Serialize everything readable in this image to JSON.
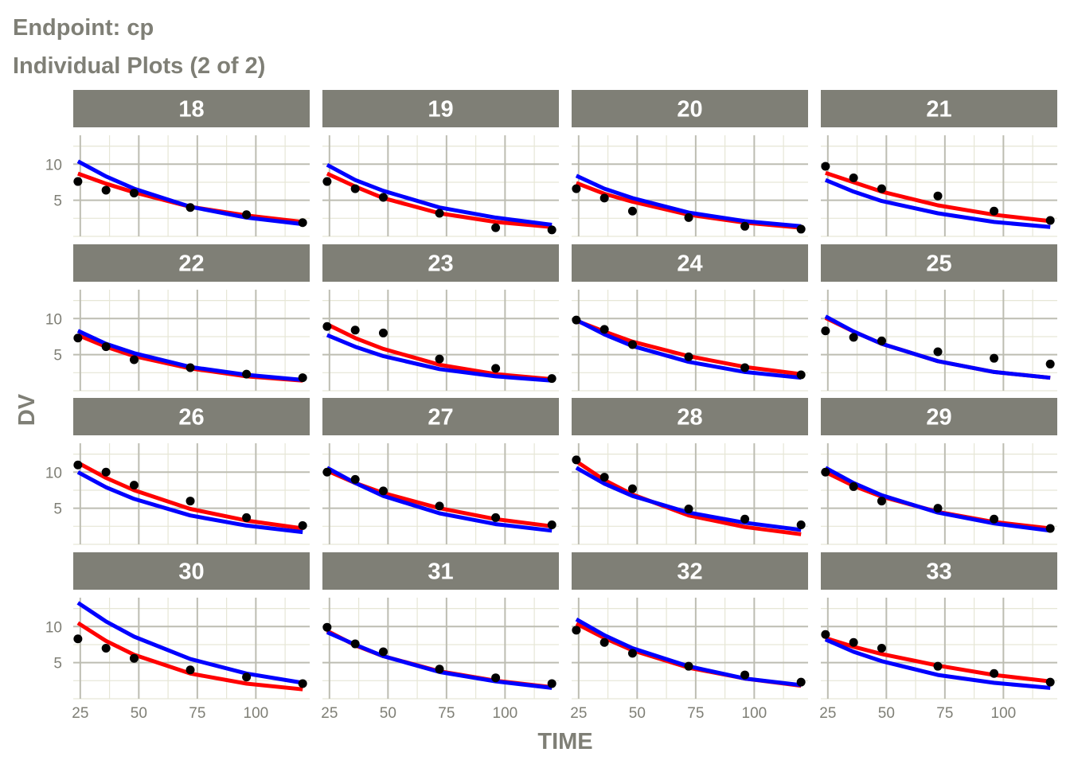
{
  "page": {
    "title_line1": "Endpoint:  cp",
    "title_line2": "Individual Plots (2 of 2)"
  },
  "chart_data": {
    "type": "line",
    "facets_layout": "4x4",
    "xlabel": "TIME",
    "ylabel": "DV",
    "xlim": [
      22,
      123
    ],
    "ylim": [
      0,
      14
    ],
    "xticks": [
      25,
      50,
      75,
      100
    ],
    "yticks": [
      5,
      10
    ],
    "grid": true,
    "x": [
      24,
      36,
      48,
      72,
      96,
      120
    ],
    "series_styles": [
      {
        "key": "red",
        "color": "#ff0000"
      },
      {
        "key": "blue",
        "color": "#0000ff"
      },
      {
        "key": "points",
        "color": "#000000"
      }
    ],
    "colors": {
      "strip_bg": "#7f7f76",
      "panel_bg": "#ffffff",
      "grid_major": "#bdbdb2",
      "grid_minor": "#e6e6d6",
      "text": "#7f7f76"
    },
    "panels": [
      {
        "id": "18",
        "points": [
          7.6,
          6.4,
          6.0,
          4.0,
          3.0,
          1.9
        ],
        "red": [
          8.7,
          7.3,
          6.1,
          4.1,
          2.9,
          2.0
        ],
        "blue": [
          10.4,
          8.3,
          6.6,
          4.1,
          2.6,
          1.7
        ]
      },
      {
        "id": "19",
        "points": [
          7.6,
          6.6,
          5.4,
          3.2,
          1.2,
          0.9
        ],
        "red": [
          8.7,
          6.9,
          5.3,
          3.2,
          2.0,
          1.3
        ],
        "blue": [
          9.9,
          7.8,
          6.3,
          4.0,
          2.6,
          1.6
        ]
      },
      {
        "id": "20",
        "points": [
          6.6,
          5.3,
          3.5,
          2.6,
          1.4,
          1.0
        ],
        "red": [
          7.4,
          5.9,
          4.8,
          3.0,
          1.9,
          1.2
        ],
        "blue": [
          8.4,
          6.6,
          5.3,
          3.3,
          2.1,
          1.4
        ]
      },
      {
        "id": "21",
        "points": [
          9.7,
          8.1,
          6.6,
          5.6,
          3.5,
          2.2
        ],
        "red": [
          8.8,
          7.5,
          6.2,
          4.3,
          3.0,
          2.1
        ],
        "blue": [
          7.8,
          6.2,
          4.9,
          3.2,
          2.0,
          1.3
        ]
      },
      {
        "id": "22",
        "points": [
          7.3,
          6.1,
          4.3,
          3.2,
          2.3,
          1.8
        ],
        "red": [
          7.7,
          6.1,
          4.8,
          3.1,
          2.0,
          1.4
        ],
        "blue": [
          8.3,
          6.5,
          5.2,
          3.3,
          2.2,
          1.5
        ]
      },
      {
        "id": "23",
        "points": [
          8.9,
          8.4,
          8.0,
          4.4,
          3.1,
          1.7
        ],
        "red": [
          9.2,
          7.3,
          5.8,
          3.6,
          2.3,
          1.6
        ],
        "blue": [
          7.7,
          6.1,
          4.8,
          3.0,
          2.0,
          1.4
        ]
      },
      {
        "id": "24",
        "points": [
          9.8,
          8.5,
          6.4,
          4.7,
          3.2,
          2.2
        ],
        "red": [
          9.7,
          8.2,
          6.8,
          4.8,
          3.3,
          2.3
        ],
        "blue": [
          9.8,
          7.8,
          6.2,
          4.0,
          2.6,
          1.8
        ]
      },
      {
        "id": "25",
        "points": [
          8.3,
          7.4,
          6.9,
          5.4,
          4.5,
          3.7
        ],
        "red": [
          10.1,
          8.2,
          6.5,
          4.1,
          2.6,
          1.8
        ],
        "blue": [
          10.3,
          8.2,
          6.5,
          4.1,
          2.6,
          1.8
        ]
      },
      {
        "id": "26",
        "points": [
          11.0,
          10.0,
          8.2,
          6.0,
          3.7,
          2.6
        ],
        "red": [
          11.3,
          9.2,
          7.5,
          4.9,
          3.3,
          2.2
        ],
        "blue": [
          10.0,
          7.9,
          6.3,
          4.0,
          2.6,
          1.7
        ]
      },
      {
        "id": "27",
        "points": [
          10.0,
          9.0,
          7.4,
          5.3,
          3.7,
          2.7
        ],
        "red": [
          10.2,
          8.5,
          7.1,
          5.0,
          3.5,
          2.5
        ],
        "blue": [
          10.6,
          8.5,
          6.7,
          4.3,
          2.8,
          1.9
        ]
      },
      {
        "id": "28",
        "points": [
          11.7,
          9.3,
          7.7,
          4.9,
          3.5,
          2.7
        ],
        "red": [
          11.5,
          8.9,
          6.9,
          4.0,
          2.4,
          1.4
        ],
        "blue": [
          10.6,
          8.4,
          6.7,
          4.4,
          3.0,
          2.0
        ]
      },
      {
        "id": "29",
        "points": [
          10.0,
          8.0,
          6.0,
          5.0,
          3.5,
          2.2
        ],
        "red": [
          10.0,
          8.1,
          6.6,
          4.5,
          3.1,
          2.2
        ],
        "blue": [
          10.6,
          8.5,
          6.8,
          4.4,
          2.9,
          1.9
        ]
      },
      {
        "id": "30",
        "points": [
          8.3,
          7.0,
          5.6,
          4.0,
          3.0,
          2.1
        ],
        "red": [
          10.5,
          8.0,
          6.1,
          3.5,
          2.1,
          1.3
        ],
        "blue": [
          13.3,
          10.7,
          8.6,
          5.5,
          3.5,
          2.2
        ]
      },
      {
        "id": "31",
        "points": [
          9.9,
          7.6,
          6.5,
          4.1,
          2.9,
          2.1
        ],
        "red": [
          9.4,
          7.4,
          5.9,
          3.8,
          2.5,
          1.6
        ],
        "blue": [
          9.2,
          7.5,
          5.9,
          3.7,
          2.4,
          1.5
        ]
      },
      {
        "id": "32",
        "points": [
          9.5,
          7.8,
          6.3,
          4.5,
          3.3,
          2.3
        ],
        "red": [
          10.4,
          8.4,
          6.7,
          4.3,
          2.8,
          1.8
        ],
        "blue": [
          11.0,
          8.8,
          7.0,
          4.5,
          2.8,
          1.9
        ]
      },
      {
        "id": "33",
        "points": [
          8.9,
          7.8,
          7.0,
          4.5,
          3.5,
          2.3
        ],
        "red": [
          8.4,
          7.2,
          6.2,
          4.6,
          3.3,
          2.4
        ],
        "blue": [
          8.2,
          6.5,
          5.2,
          3.3,
          2.2,
          1.5
        ]
      }
    ]
  }
}
